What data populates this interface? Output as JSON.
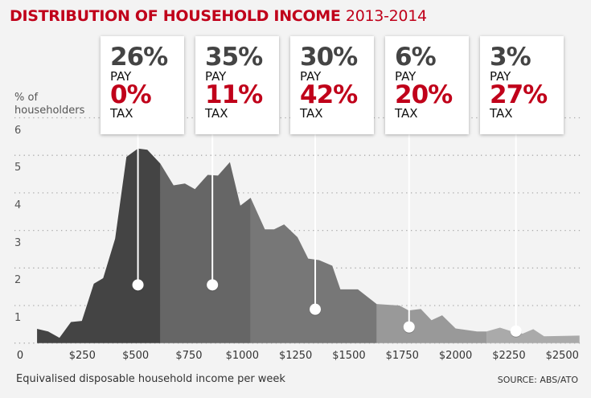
{
  "title": {
    "main": "DISTRIBUTION OF HOUSEHOLD INCOME",
    "year": "2013-2014"
  },
  "colors": {
    "title": "#c0001a",
    "rate": "#c0001a",
    "share": "#444444",
    "segments": [
      "#444444",
      "#666666",
      "#777777",
      "#999999",
      "#aaaaaa"
    ]
  },
  "chart_data": {
    "type": "area",
    "ylabel": "% of householders",
    "xlabel": "Equivalised disposable household income per week",
    "source": "SOURCE: ABS/ATO",
    "ylim": [
      0,
      6
    ],
    "xlim": [
      0,
      2580
    ],
    "grid": true,
    "yticks": [
      "1",
      "2",
      "3",
      "4",
      "5",
      "6"
    ],
    "xticks": [
      {
        "value": 0,
        "label": "0"
      },
      {
        "value": 250,
        "label": "$250"
      },
      {
        "value": 500,
        "label": "$500"
      },
      {
        "value": 750,
        "label": "$750"
      },
      {
        "value": 1000,
        "label": "$1000"
      },
      {
        "value": 1250,
        "label": "$1250"
      },
      {
        "value": 1500,
        "label": "$1500"
      },
      {
        "value": 1750,
        "label": "$1750"
      },
      {
        "value": 2000,
        "label": "$2000"
      },
      {
        "value": 2250,
        "label": "$2250"
      },
      {
        "value": 2500,
        "label": "$2500"
      }
    ],
    "points": [
      [
        38,
        0.38
      ],
      [
        90,
        0.31
      ],
      [
        143,
        0.14
      ],
      [
        197,
        0.56
      ],
      [
        248,
        0.59
      ],
      [
        304,
        1.58
      ],
      [
        348,
        1.73
      ],
      [
        404,
        2.78
      ],
      [
        457,
        4.96
      ],
      [
        511,
        5.18
      ],
      [
        555,
        5.15
      ],
      [
        616,
        4.78
      ],
      [
        678,
        4.2
      ],
      [
        731,
        4.25
      ],
      [
        778,
        4.1
      ],
      [
        838,
        4.48
      ],
      [
        886,
        4.46
      ],
      [
        942,
        4.82
      ],
      [
        991,
        3.66
      ],
      [
        1039,
        3.87
      ],
      [
        1106,
        3.03
      ],
      [
        1149,
        3.03
      ],
      [
        1196,
        3.16
      ],
      [
        1259,
        2.82
      ],
      [
        1309,
        2.25
      ],
      [
        1360,
        2.21
      ],
      [
        1422,
        2.06
      ],
      [
        1460,
        1.43
      ],
      [
        1542,
        1.43
      ],
      [
        1630,
        1.04
      ],
      [
        1737,
        1.0
      ],
      [
        1780,
        0.87
      ],
      [
        1837,
        0.91
      ],
      [
        1887,
        0.61
      ],
      [
        1937,
        0.74
      ],
      [
        2000,
        0.39
      ],
      [
        2100,
        0.31
      ],
      [
        2145,
        0.31
      ],
      [
        2208,
        0.41
      ],
      [
        2264,
        0.31
      ],
      [
        2314,
        0.25
      ],
      [
        2364,
        0.37
      ],
      [
        2415,
        0.18
      ],
      [
        2581,
        0.2
      ]
    ],
    "segment_bounds": [
      38,
      616,
      1040,
      1630,
      2145,
      2581
    ],
    "brackets": [
      {
        "share": "26%",
        "pay": "PAY",
        "rate": "0%",
        "tax": "TAX",
        "marker_income": 511,
        "marker_value": 1.55
      },
      {
        "share": "35%",
        "pay": "PAY",
        "rate": "11%",
        "tax": "TAX",
        "marker_income": 860,
        "marker_value": 1.55
      },
      {
        "share": "30%",
        "pay": "PAY",
        "rate": "42%",
        "tax": "TAX",
        "marker_income": 1342,
        "marker_value": 0.9
      },
      {
        "share": "6%",
        "pay": "PAY",
        "rate": "20%",
        "tax": "TAX",
        "marker_income": 1782,
        "marker_value": 0.43
      },
      {
        "share": "3%",
        "pay": "PAY",
        "rate": "27%",
        "tax": "TAX",
        "marker_income": 2283,
        "marker_value": 0.32
      }
    ]
  }
}
